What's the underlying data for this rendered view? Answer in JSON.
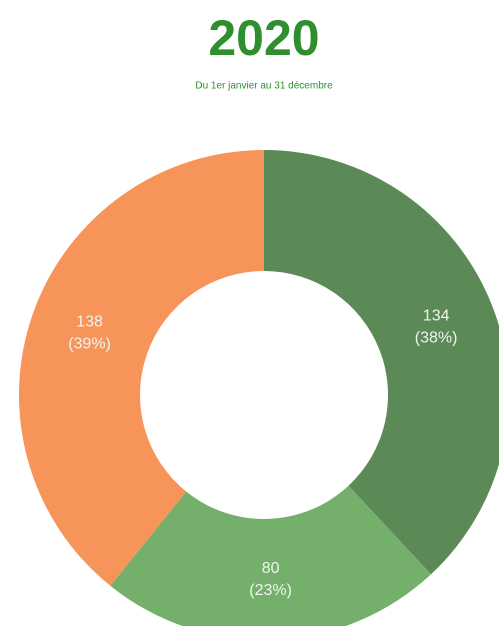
{
  "chart_data": {
    "type": "donut",
    "title": "2020",
    "subtitle": "Du 1er janvier au 31 décembre",
    "values": [
      134,
      80,
      138
    ],
    "percent_labels": [
      "(38%)",
      "(23%)",
      "(39%)"
    ],
    "colors": [
      "#5b8a57",
      "#74b06b",
      "#f79459"
    ]
  }
}
